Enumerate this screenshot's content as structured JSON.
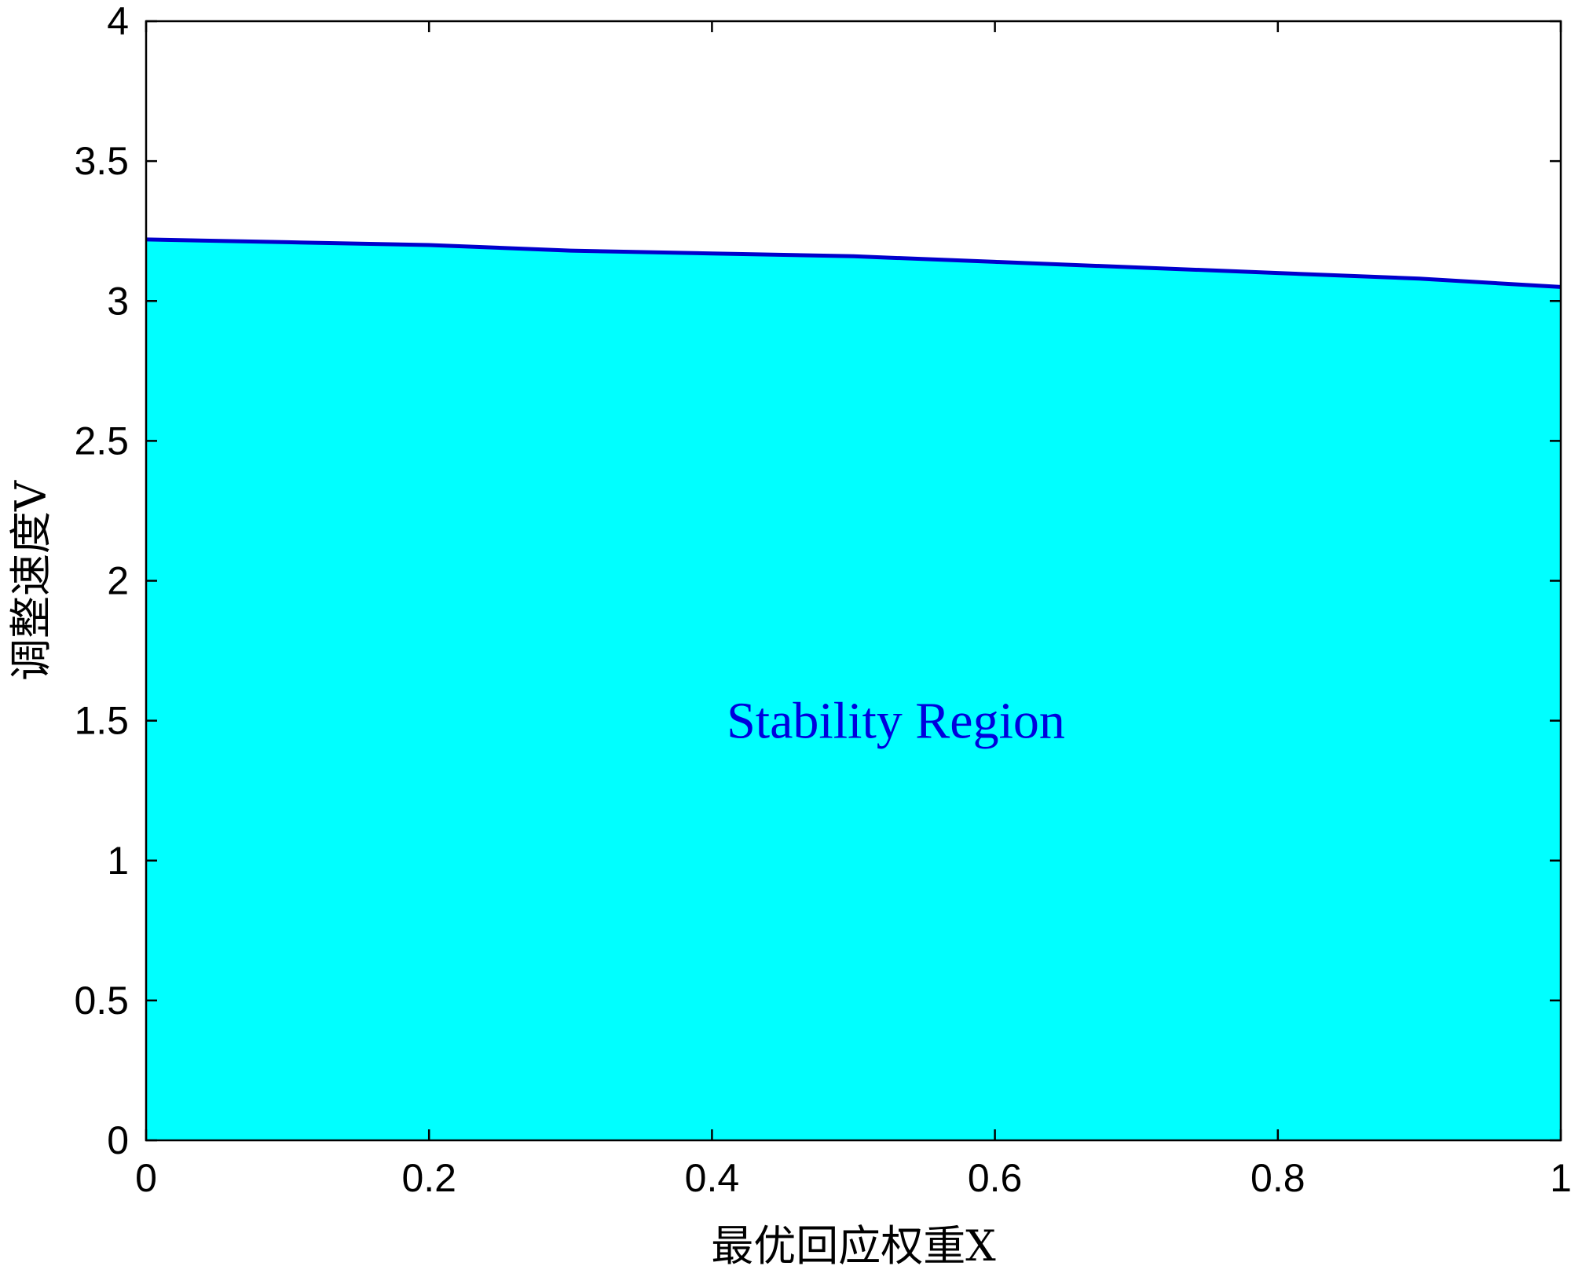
{
  "chart_data": {
    "type": "area",
    "title": "",
    "xlabel": "最优回应权重X",
    "ylabel": "调整速度V",
    "xlim": [
      0,
      1
    ],
    "ylim": [
      0,
      4
    ],
    "x_ticks": [
      "0",
      "0.2",
      "0.4",
      "0.6",
      "0.8",
      "1"
    ],
    "y_ticks": [
      "0",
      "0.5",
      "1",
      "1.5",
      "2",
      "2.5",
      "3",
      "3.5",
      "4"
    ],
    "grid": false,
    "legend": "none",
    "x": [
      0,
      0.1,
      0.2,
      0.3,
      0.4,
      0.5,
      0.6,
      0.7,
      0.8,
      0.9,
      1.0
    ],
    "series": [
      {
        "values": [
          3.22,
          3.21,
          3.2,
          3.18,
          3.17,
          3.16,
          3.14,
          3.12,
          3.1,
          3.08,
          3.05
        ]
      }
    ],
    "fill_color": "#00FFFF",
    "line_color": "#0000CC",
    "annotation": {
      "text": "Stability Region",
      "x": 0.53,
      "y": 1.5,
      "color": "#0000DD"
    }
  }
}
